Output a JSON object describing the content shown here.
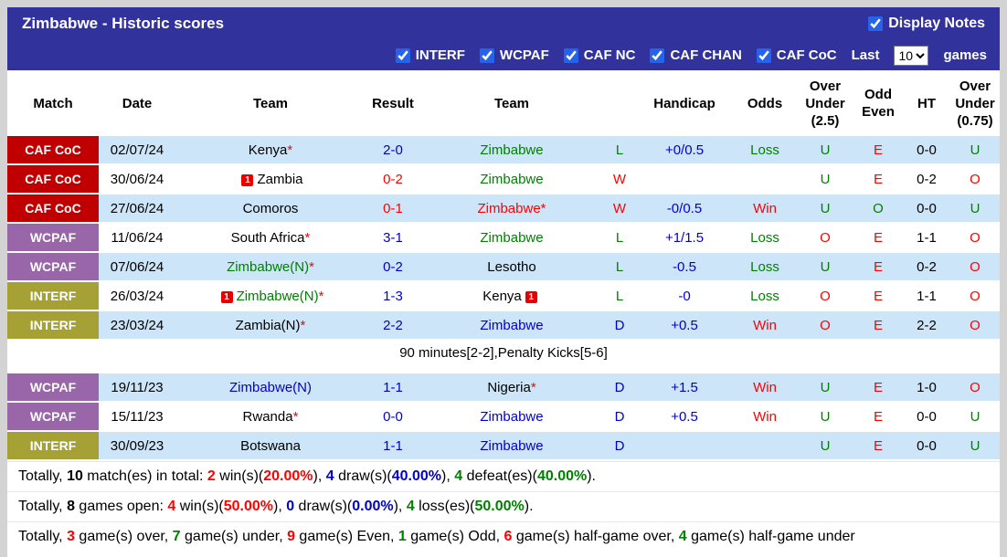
{
  "title_bar": {
    "title": "Zimbabwe - Historic scores",
    "display_notes_label": "Display Notes",
    "display_notes_checked": true
  },
  "filter_bar": {
    "competitions": [
      {
        "label": "INTERF",
        "checked": true
      },
      {
        "label": "WCPAF",
        "checked": true
      },
      {
        "label": "CAF NC",
        "checked": true
      },
      {
        "label": "CAF CHAN",
        "checked": true
      },
      {
        "label": "CAF CoC",
        "checked": true
      }
    ],
    "last_label": "Last",
    "games_count": "10",
    "games_label": "games"
  },
  "table": {
    "headers": [
      "Match",
      "Date",
      "Team",
      "Result",
      "Team",
      "",
      "Handicap",
      "Odds",
      "Over\nUnder\n(2.5)",
      "Odd\nEven",
      "HT",
      "Over\nUnder\n(0.75)"
    ],
    "rows": [
      {
        "shade": "blue",
        "comp": "CAF CoC",
        "comp_class": "coc",
        "date": "02/07/24",
        "home": {
          "name": "Kenya",
          "star": true,
          "color": "k"
        },
        "result": {
          "text": "2-0",
          "color": "b"
        },
        "away": {
          "name": "Zimbabwe",
          "color": "g"
        },
        "letter": {
          "text": "L",
          "color": "g"
        },
        "handicap": {
          "text": "+0/0.5",
          "color": "b"
        },
        "odds": {
          "text": "Loss",
          "color": "g"
        },
        "over_under_25": {
          "text": "U",
          "color": "g"
        },
        "odd_even": {
          "text": "E",
          "color": "r"
        },
        "ht": "0-0",
        "over_under_075": {
          "text": "U",
          "color": "g"
        }
      },
      {
        "shade": "white",
        "comp": "CAF CoC",
        "comp_class": "coc",
        "date": "30/06/24",
        "home": {
          "name": "Zambia",
          "color": "k",
          "red_cards_before": 1
        },
        "result": {
          "text": "0-2",
          "color": "r"
        },
        "away": {
          "name": "Zimbabwe",
          "color": "g"
        },
        "letter": {
          "text": "W",
          "color": "r"
        },
        "handicap": {
          "text": "",
          "color": "k"
        },
        "odds": {
          "text": "",
          "color": "k"
        },
        "over_under_25": {
          "text": "U",
          "color": "g"
        },
        "odd_even": {
          "text": "E",
          "color": "r"
        },
        "ht": "0-2",
        "over_under_075": {
          "text": "O",
          "color": "r"
        }
      },
      {
        "shade": "blue",
        "comp": "CAF CoC",
        "comp_class": "coc",
        "date": "27/06/24",
        "home": {
          "name": "Comoros",
          "color": "k"
        },
        "result": {
          "text": "0-1",
          "color": "r"
        },
        "away": {
          "name": "Zimbabwe",
          "star": true,
          "color": "r"
        },
        "letter": {
          "text": "W",
          "color": "r"
        },
        "handicap": {
          "text": "-0/0.5",
          "color": "b"
        },
        "odds": {
          "text": "Win",
          "color": "r"
        },
        "over_under_25": {
          "text": "U",
          "color": "g"
        },
        "odd_even": {
          "text": "O",
          "color": "g"
        },
        "ht": "0-0",
        "over_under_075": {
          "text": "U",
          "color": "g"
        }
      },
      {
        "shade": "white",
        "comp": "WCPAF",
        "comp_class": "wcpaf",
        "date": "11/06/24",
        "home": {
          "name": "South Africa",
          "star": true,
          "color": "k"
        },
        "result": {
          "text": "3-1",
          "color": "b"
        },
        "away": {
          "name": "Zimbabwe",
          "color": "g"
        },
        "letter": {
          "text": "L",
          "color": "g"
        },
        "handicap": {
          "text": "+1/1.5",
          "color": "b"
        },
        "odds": {
          "text": "Loss",
          "color": "g"
        },
        "over_under_25": {
          "text": "O",
          "color": "r"
        },
        "odd_even": {
          "text": "E",
          "color": "r"
        },
        "ht": "1-1",
        "over_under_075": {
          "text": "O",
          "color": "r"
        }
      },
      {
        "shade": "blue",
        "comp": "WCPAF",
        "comp_class": "wcpaf",
        "date": "07/06/24",
        "home": {
          "name": "Zimbabwe(N)",
          "star": true,
          "color": "g"
        },
        "result": {
          "text": "0-2",
          "color": "b"
        },
        "away": {
          "name": "Lesotho",
          "color": "k"
        },
        "letter": {
          "text": "L",
          "color": "g"
        },
        "handicap": {
          "text": "-0.5",
          "color": "b"
        },
        "odds": {
          "text": "Loss",
          "color": "g"
        },
        "over_under_25": {
          "text": "U",
          "color": "g"
        },
        "odd_even": {
          "text": "E",
          "color": "r"
        },
        "ht": "0-2",
        "over_under_075": {
          "text": "O",
          "color": "r"
        }
      },
      {
        "shade": "white",
        "comp": "INTERF",
        "comp_class": "interf",
        "date": "26/03/24",
        "home": {
          "name": "Zimbabwe(N)",
          "star": true,
          "color": "g",
          "red_cards_before": 1
        },
        "result": {
          "text": "1-3",
          "color": "b"
        },
        "away": {
          "name": "Kenya",
          "color": "k",
          "red_cards_after": 1
        },
        "letter": {
          "text": "L",
          "color": "g"
        },
        "handicap": {
          "text": "-0",
          "color": "b"
        },
        "odds": {
          "text": "Loss",
          "color": "g"
        },
        "over_under_25": {
          "text": "O",
          "color": "r"
        },
        "odd_even": {
          "text": "E",
          "color": "r"
        },
        "ht": "1-1",
        "over_under_075": {
          "text": "O",
          "color": "r"
        }
      },
      {
        "shade": "blue",
        "comp": "INTERF",
        "comp_class": "interf",
        "date": "23/03/24",
        "home": {
          "name": "Zambia(N)",
          "star": true,
          "color": "k"
        },
        "result": {
          "text": "2-2",
          "color": "b"
        },
        "away": {
          "name": "Zimbabwe",
          "color": "b"
        },
        "letter": {
          "text": "D",
          "color": "b"
        },
        "handicap": {
          "text": "+0.5",
          "color": "b"
        },
        "odds": {
          "text": "Win",
          "color": "r"
        },
        "over_under_25": {
          "text": "O",
          "color": "r"
        },
        "odd_even": {
          "text": "E",
          "color": "r"
        },
        "ht": "2-2",
        "over_under_075": {
          "text": "O",
          "color": "r"
        },
        "note": "90 minutes[2-2],Penalty Kicks[5-6]"
      },
      {
        "shade": "blue",
        "comp": "WCPAF",
        "comp_class": "wcpaf",
        "date": "19/11/23",
        "home": {
          "name": "Zimbabwe(N)",
          "color": "b"
        },
        "result": {
          "text": "1-1",
          "color": "b"
        },
        "away": {
          "name": "Nigeria",
          "star": true,
          "color": "k"
        },
        "letter": {
          "text": "D",
          "color": "b"
        },
        "handicap": {
          "text": "+1.5",
          "color": "b"
        },
        "odds": {
          "text": "Win",
          "color": "r"
        },
        "over_under_25": {
          "text": "U",
          "color": "g"
        },
        "odd_even": {
          "text": "E",
          "color": "r"
        },
        "ht": "1-0",
        "over_under_075": {
          "text": "O",
          "color": "r"
        }
      },
      {
        "shade": "white",
        "comp": "WCPAF",
        "comp_class": "wcpaf",
        "date": "15/11/23",
        "home": {
          "name": "Rwanda",
          "star": true,
          "color": "k"
        },
        "result": {
          "text": "0-0",
          "color": "b"
        },
        "away": {
          "name": "Zimbabwe",
          "color": "b"
        },
        "letter": {
          "text": "D",
          "color": "b"
        },
        "handicap": {
          "text": "+0.5",
          "color": "b"
        },
        "odds": {
          "text": "Win",
          "color": "r"
        },
        "over_under_25": {
          "text": "U",
          "color": "g"
        },
        "odd_even": {
          "text": "E",
          "color": "r"
        },
        "ht": "0-0",
        "over_under_075": {
          "text": "U",
          "color": "g"
        }
      },
      {
        "shade": "blue",
        "comp": "INTERF",
        "comp_class": "interf",
        "date": "30/09/23",
        "home": {
          "name": "Botswana",
          "color": "k"
        },
        "result": {
          "text": "1-1",
          "color": "b"
        },
        "away": {
          "name": "Zimbabwe",
          "color": "b"
        },
        "letter": {
          "text": "D",
          "color": "b"
        },
        "handicap": {
          "text": "",
          "color": "k"
        },
        "odds": {
          "text": "",
          "color": "k"
        },
        "over_under_25": {
          "text": "U",
          "color": "g"
        },
        "odd_even": {
          "text": "E",
          "color": "r"
        },
        "ht": "0-0",
        "over_under_075": {
          "text": "U",
          "color": "g"
        }
      }
    ]
  },
  "summary": [
    {
      "segments": [
        {
          "t": "Totally, "
        },
        {
          "t": "10",
          "b": 1
        },
        {
          "t": " match(es) in total: "
        },
        {
          "t": "2",
          "c": "r",
          "b": 1
        },
        {
          "t": " win(s)("
        },
        {
          "t": "20.00%",
          "c": "r",
          "b": 1
        },
        {
          "t": "), "
        },
        {
          "t": "4",
          "c": "b",
          "b": 1
        },
        {
          "t": " draw(s)("
        },
        {
          "t": "40.00%",
          "c": "b",
          "b": 1
        },
        {
          "t": "), "
        },
        {
          "t": "4",
          "c": "g",
          "b": 1
        },
        {
          "t": " defeat(es)("
        },
        {
          "t": "40.00%",
          "c": "g",
          "b": 1
        },
        {
          "t": ")."
        }
      ]
    },
    {
      "segments": [
        {
          "t": "Totally, "
        },
        {
          "t": "8",
          "b": 1
        },
        {
          "t": " games open: "
        },
        {
          "t": "4",
          "c": "r",
          "b": 1
        },
        {
          "t": " win(s)("
        },
        {
          "t": "50.00%",
          "c": "r",
          "b": 1
        },
        {
          "t": "), "
        },
        {
          "t": "0",
          "c": "b",
          "b": 1
        },
        {
          "t": " draw(s)("
        },
        {
          "t": "0.00%",
          "c": "b",
          "b": 1
        },
        {
          "t": "), "
        },
        {
          "t": "4",
          "c": "g",
          "b": 1
        },
        {
          "t": " loss(es)("
        },
        {
          "t": "50.00%",
          "c": "g",
          "b": 1
        },
        {
          "t": ")."
        }
      ]
    },
    {
      "segments": [
        {
          "t": "Totally, "
        },
        {
          "t": "3",
          "c": "r",
          "b": 1
        },
        {
          "t": " game(s) over, "
        },
        {
          "t": "7",
          "c": "g",
          "b": 1
        },
        {
          "t": " game(s) under, "
        },
        {
          "t": "9",
          "c": "r",
          "b": 1
        },
        {
          "t": " game(s) Even, "
        },
        {
          "t": "1",
          "c": "g",
          "b": 1
        },
        {
          "t": " game(s) Odd, "
        },
        {
          "t": "6",
          "c": "r",
          "b": 1
        },
        {
          "t": " game(s) half-game over, "
        },
        {
          "t": "4",
          "c": "g",
          "b": 1
        },
        {
          "t": " game(s) half-game under"
        }
      ]
    }
  ]
}
